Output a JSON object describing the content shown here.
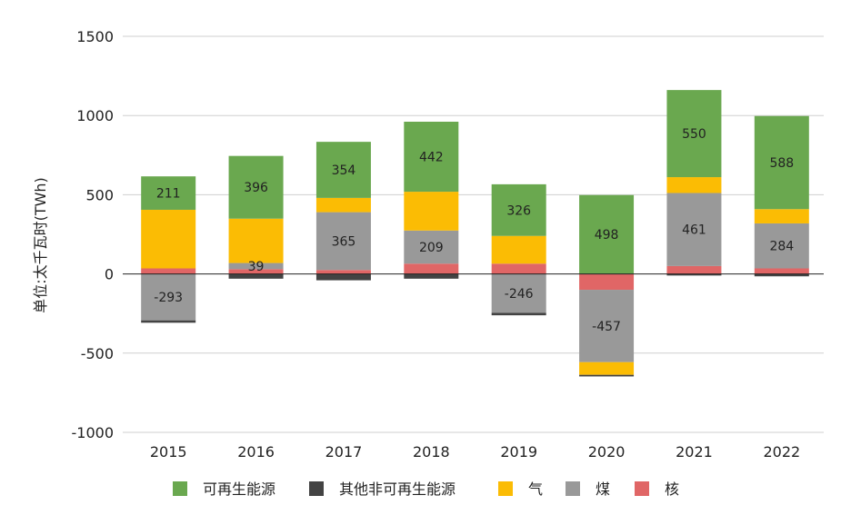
{
  "chart_data": {
    "type": "bar",
    "stacked": true,
    "ylabel": "单位:太千瓦时(TWh)",
    "xlabel": "",
    "ylim": [
      -1000,
      1500
    ],
    "yticks": [
      1500,
      1000,
      500,
      0,
      -500,
      -1000
    ],
    "categories": [
      "2015",
      "2016",
      "2017",
      "2018",
      "2019",
      "2020",
      "2021",
      "2022"
    ],
    "grid": true,
    "legend_position": "bottom",
    "series": [
      {
        "name": "可再生能源",
        "color": "#6aa84f",
        "values": [
          211,
          396,
          354,
          442,
          326,
          498,
          550,
          588
        ],
        "labels": [
          "211",
          "396",
          "354",
          "442",
          "326",
          "498",
          "550",
          "588"
        ]
      },
      {
        "name": "其他非可再生能源",
        "color": "#434343",
        "values": [
          -15,
          -30,
          -40,
          -30,
          -15,
          -10,
          -10,
          -15
        ],
        "labels": []
      },
      {
        "name": "气",
        "color": "#fbbc04",
        "values": [
          370,
          280,
          90,
          245,
          175,
          -80,
          100,
          90
        ],
        "labels": []
      },
      {
        "name": "煤",
        "color": "#999999",
        "values": [
          -293,
          39,
          365,
          209,
          -246,
          -457,
          461,
          284
        ],
        "labels": [
          "-293",
          "39",
          "365",
          "209",
          "-246",
          "-457",
          "461",
          "284"
        ]
      },
      {
        "name": "核",
        "color": "#e06666",
        "values": [
          35,
          30,
          25,
          65,
          65,
          -100,
          50,
          35
        ],
        "labels": []
      }
    ]
  }
}
